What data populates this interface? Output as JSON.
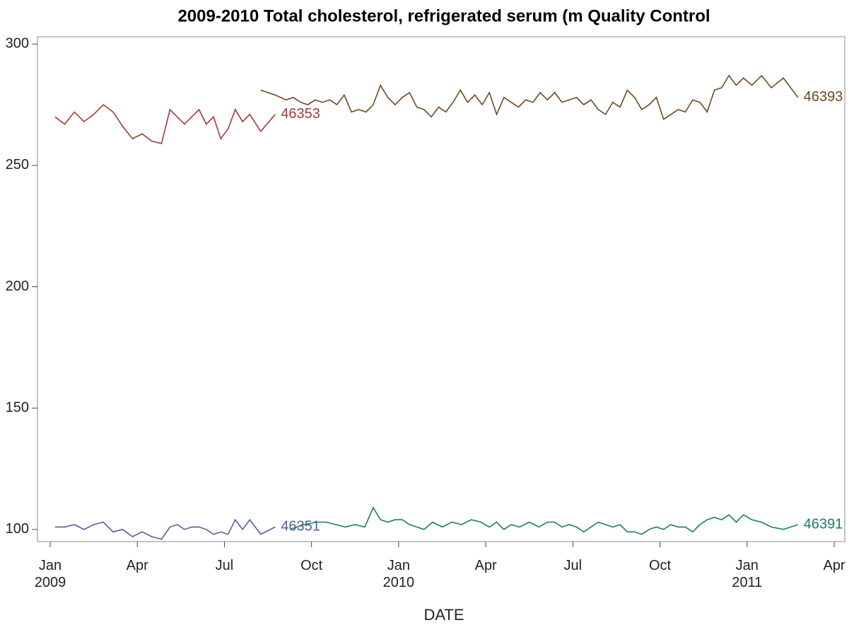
{
  "chart_data": {
    "type": "line",
    "title": "2009-2010 Total cholesterol, refrigerated serum (m Quality Control",
    "x_label": "DATE",
    "xlim": [
      "2009-01",
      "2011-04"
    ],
    "xticks": [
      {
        "value": "2009-01",
        "label": "Jan\n2009"
      },
      {
        "value": "2009-04",
        "label": "Apr"
      },
      {
        "value": "2009-07",
        "label": "Jul"
      },
      {
        "value": "2009-10",
        "label": "Oct"
      },
      {
        "value": "2010-01",
        "label": "Jan\n2010"
      },
      {
        "value": "2010-04",
        "label": "Apr"
      },
      {
        "value": "2010-07",
        "label": "Jul"
      },
      {
        "value": "2010-10",
        "label": "Oct"
      },
      {
        "value": "2011-01",
        "label": "Jan\n2011"
      },
      {
        "value": "2011-04",
        "label": "Apr"
      }
    ],
    "ylim": [
      95,
      303
    ],
    "yticks": [
      100,
      150,
      200,
      250,
      300
    ],
    "series": [
      {
        "name": "46353",
        "color": "#a23b36",
        "x": [
          "2009-01",
          "2009-01",
          "2009-01",
          "2009-02",
          "2009-02",
          "2009-02",
          "2009-03",
          "2009-03",
          "2009-03",
          "2009-04",
          "2009-04",
          "2009-04",
          "2009-05",
          "2009-05",
          "2009-05",
          "2009-05",
          "2009-06",
          "2009-06",
          "2009-06",
          "2009-06",
          "2009-07",
          "2009-07",
          "2009-07",
          "2009-07",
          "2009-08",
          "2009-08"
        ],
        "values": [
          270,
          267,
          272,
          268,
          271,
          275,
          272,
          266,
          261,
          263,
          260,
          259,
          273,
          270,
          267,
          270,
          273,
          267,
          270,
          261,
          265,
          273,
          268,
          271,
          264,
          271
        ]
      },
      {
        "name": "46351",
        "color": "#5060a0",
        "x": [
          "2009-01",
          "2009-01",
          "2009-01",
          "2009-02",
          "2009-02",
          "2009-02",
          "2009-03",
          "2009-03",
          "2009-03",
          "2009-04",
          "2009-04",
          "2009-04",
          "2009-05",
          "2009-05",
          "2009-05",
          "2009-05",
          "2009-06",
          "2009-06",
          "2009-06",
          "2009-06",
          "2009-07",
          "2009-07",
          "2009-07",
          "2009-07",
          "2009-08",
          "2009-08"
        ],
        "values": [
          101,
          101,
          102,
          100,
          102,
          103,
          99,
          100,
          97,
          99,
          97,
          96,
          101,
          102,
          100,
          101,
          101,
          100,
          98,
          99,
          98,
          104,
          100,
          104,
          98,
          101
        ]
      },
      {
        "name": "46393",
        "color": "#6b4a1e",
        "x": [
          "2009-08",
          "2009-08",
          "2009-09",
          "2009-09",
          "2009-09",
          "2009-09",
          "2009-10",
          "2009-10",
          "2009-10",
          "2009-10",
          "2009-11",
          "2009-11",
          "2009-11",
          "2009-11",
          "2009-12",
          "2009-12",
          "2009-12",
          "2009-12",
          "2010-01",
          "2010-01",
          "2010-01",
          "2010-01",
          "2010-02",
          "2010-02",
          "2010-02",
          "2010-02",
          "2010-03",
          "2010-03",
          "2010-03",
          "2010-03",
          "2010-04",
          "2010-04",
          "2010-04",
          "2010-04",
          "2010-05",
          "2010-05",
          "2010-05",
          "2010-05",
          "2010-06",
          "2010-06",
          "2010-06",
          "2010-06",
          "2010-07",
          "2010-07",
          "2010-07",
          "2010-07",
          "2010-08",
          "2010-08",
          "2010-08",
          "2010-08",
          "2010-09",
          "2010-09",
          "2010-09",
          "2010-09",
          "2010-10",
          "2010-10",
          "2010-10",
          "2010-10",
          "2010-11",
          "2010-11",
          "2010-11",
          "2010-11",
          "2010-12",
          "2010-12",
          "2010-12",
          "2010-12",
          "2011-01",
          "2011-01",
          "2011-01",
          "2011-02",
          "2011-02"
        ],
        "values": [
          281,
          279,
          277,
          278,
          276,
          275,
          277,
          276,
          277,
          275,
          279,
          272,
          273,
          272,
          275,
          283,
          278,
          275,
          278,
          280,
          274,
          273,
          270,
          274,
          272,
          276,
          281,
          276,
          279,
          275,
          280,
          271,
          278,
          276,
          274,
          277,
          276,
          280,
          277,
          280,
          276,
          277,
          278,
          275,
          277,
          273,
          271,
          276,
          274,
          281,
          278,
          273,
          275,
          278,
          269,
          271,
          273,
          272,
          277,
          276,
          272,
          281,
          282,
          287,
          283,
          286,
          283,
          287,
          282,
          286,
          278
        ]
      },
      {
        "name": "46391",
        "color": "#1e7a6c",
        "x": [
          "2009-09",
          "2009-09",
          "2009-10",
          "2009-10",
          "2009-10",
          "2009-11",
          "2009-11",
          "2009-11",
          "2009-12",
          "2009-12",
          "2009-12",
          "2009-12",
          "2010-01",
          "2010-01",
          "2010-01",
          "2010-01",
          "2010-02",
          "2010-02",
          "2010-02",
          "2010-03",
          "2010-03",
          "2010-03",
          "2010-04",
          "2010-04",
          "2010-04",
          "2010-04",
          "2010-05",
          "2010-05",
          "2010-05",
          "2010-06",
          "2010-06",
          "2010-06",
          "2010-06",
          "2010-07",
          "2010-07",
          "2010-07",
          "2010-07",
          "2010-08",
          "2010-08",
          "2010-08",
          "2010-08",
          "2010-09",
          "2010-09",
          "2010-09",
          "2010-09",
          "2010-10",
          "2010-10",
          "2010-10",
          "2010-10",
          "2010-11",
          "2010-11",
          "2010-11",
          "2010-11",
          "2010-12",
          "2010-12",
          "2010-12",
          "2010-12",
          "2011-01",
          "2011-01",
          "2011-01",
          "2011-02",
          "2011-02"
        ],
        "values": [
          100,
          102,
          103,
          103,
          102,
          101,
          102,
          101,
          109,
          104,
          103,
          104,
          104,
          102,
          101,
          100,
          103,
          101,
          103,
          102,
          104,
          103,
          101,
          103,
          100,
          102,
          101,
          103,
          101,
          103,
          103,
          101,
          102,
          101,
          99,
          101,
          103,
          102,
          101,
          102,
          99,
          99,
          98,
          100,
          101,
          100,
          102,
          101,
          101,
          99,
          102,
          104,
          105,
          104,
          106,
          103,
          106,
          104,
          103,
          101,
          100,
          102
        ]
      }
    ]
  }
}
